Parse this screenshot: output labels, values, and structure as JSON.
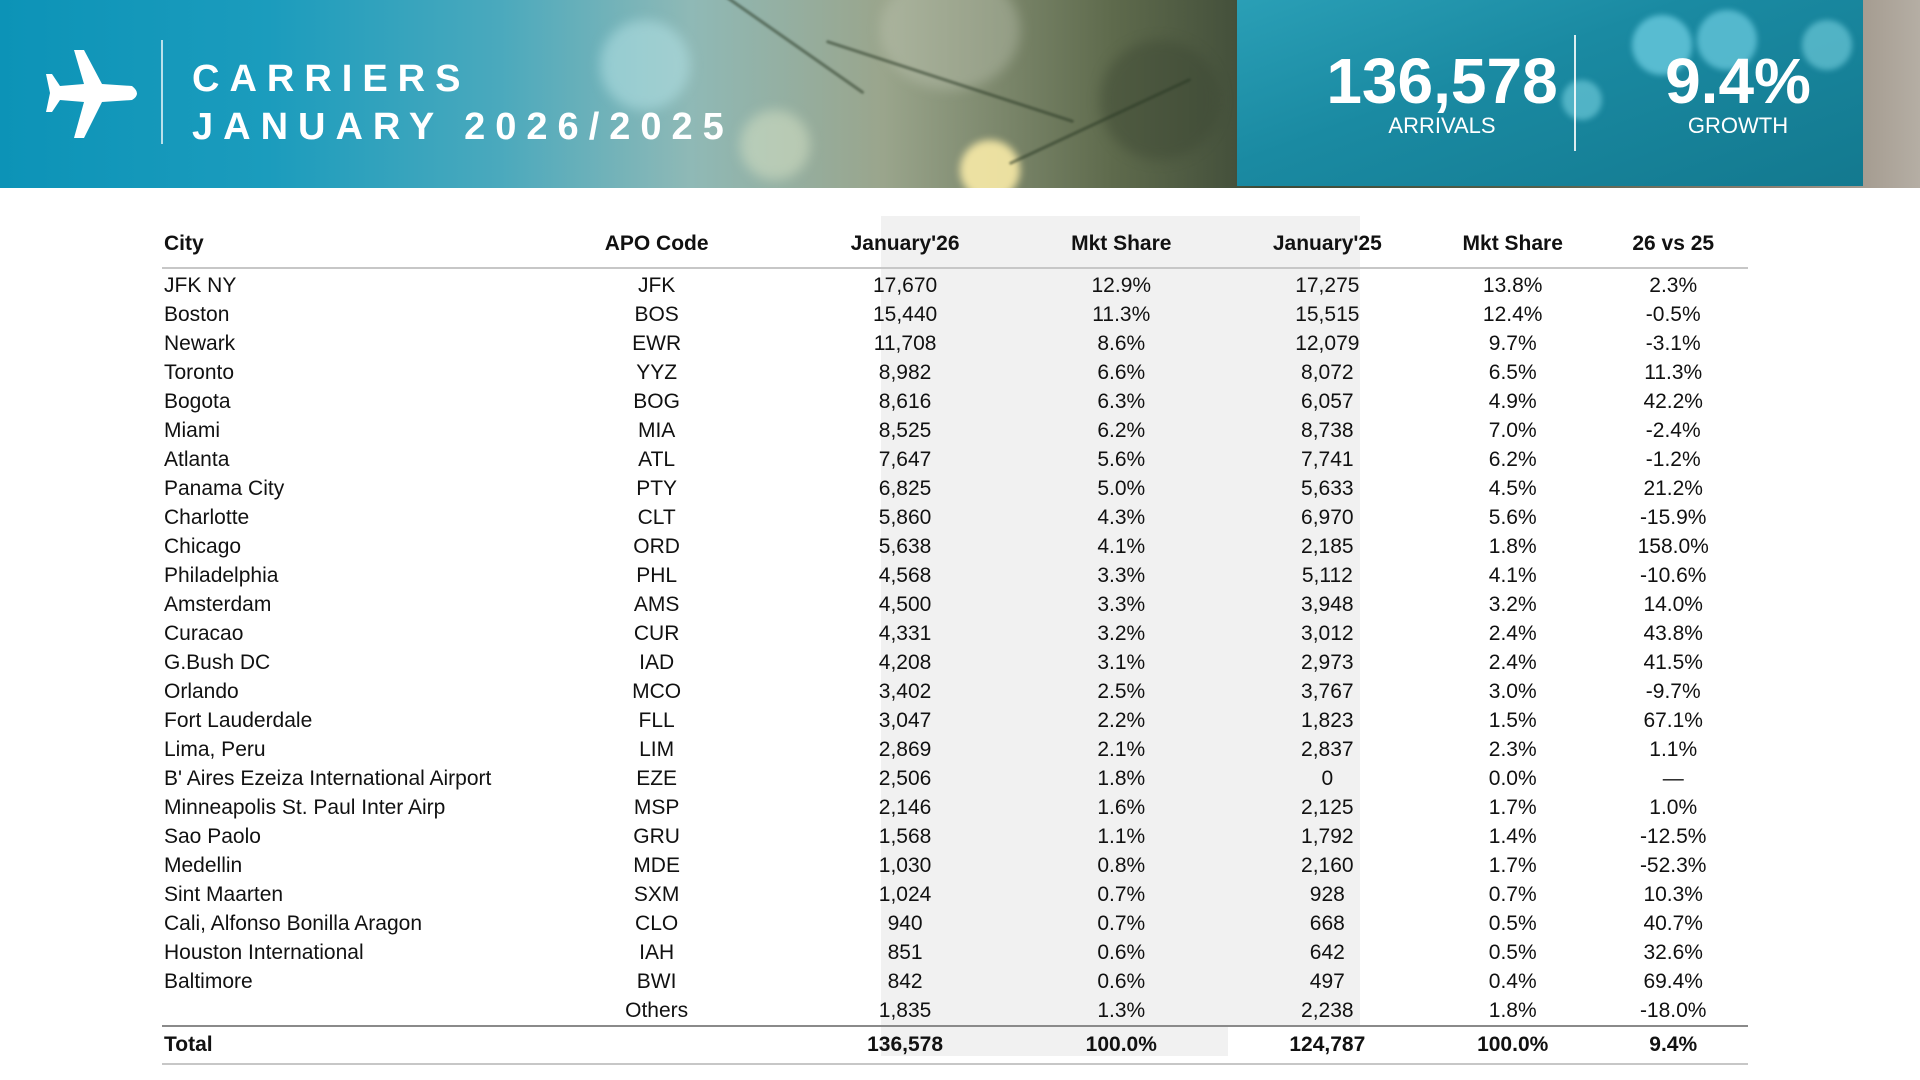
{
  "header": {
    "title_line1": "CARRIERS",
    "title_line2": "JANUARY 2026/2025",
    "icon": "airplane-icon",
    "kpis": {
      "arrivals": {
        "value": "136,578",
        "label": "ARRIVALS"
      },
      "growth": {
        "value": "9.4%",
        "label": "GROWTH"
      }
    }
  },
  "colors": {
    "banner_teal": "#0c93b7",
    "kpi_panel": "#1a8aa2",
    "shaded_column": "#f1f1f1",
    "rule": "#c7c7c7",
    "text": "#111111"
  },
  "table": {
    "columns": [
      "City",
      "APO Code",
      "January'26",
      "Mkt Share",
      "January'25",
      "Mkt Share",
      "26 vs 25"
    ],
    "rows": [
      {
        "city": "JFK NY",
        "code": "JFK",
        "jan26": "17,670",
        "share26": "12.9%",
        "jan25": "17,275",
        "share25": "13.8%",
        "diff": "2.3%"
      },
      {
        "city": "Boston",
        "code": "BOS",
        "jan26": "15,440",
        "share26": "11.3%",
        "jan25": "15,515",
        "share25": "12.4%",
        "diff": "-0.5%"
      },
      {
        "city": "Newark",
        "code": "EWR",
        "jan26": "11,708",
        "share26": "8.6%",
        "jan25": "12,079",
        "share25": "9.7%",
        "diff": "-3.1%"
      },
      {
        "city": "Toronto",
        "code": "YYZ",
        "jan26": "8,982",
        "share26": "6.6%",
        "jan25": "8,072",
        "share25": "6.5%",
        "diff": "11.3%"
      },
      {
        "city": "Bogota",
        "code": "BOG",
        "jan26": "8,616",
        "share26": "6.3%",
        "jan25": "6,057",
        "share25": "4.9%",
        "diff": "42.2%"
      },
      {
        "city": "Miami",
        "code": "MIA",
        "jan26": "8,525",
        "share26": "6.2%",
        "jan25": "8,738",
        "share25": "7.0%",
        "diff": "-2.4%"
      },
      {
        "city": "Atlanta",
        "code": "ATL",
        "jan26": "7,647",
        "share26": "5.6%",
        "jan25": "7,741",
        "share25": "6.2%",
        "diff": "-1.2%"
      },
      {
        "city": "Panama City",
        "code": "PTY",
        "jan26": "6,825",
        "share26": "5.0%",
        "jan25": "5,633",
        "share25": "4.5%",
        "diff": "21.2%"
      },
      {
        "city": "Charlotte",
        "code": "CLT",
        "jan26": "5,860",
        "share26": "4.3%",
        "jan25": "6,970",
        "share25": "5.6%",
        "diff": "-15.9%"
      },
      {
        "city": "Chicago",
        "code": "ORD",
        "jan26": "5,638",
        "share26": "4.1%",
        "jan25": "2,185",
        "share25": "1.8%",
        "diff": "158.0%"
      },
      {
        "city": "Philadelphia",
        "code": "PHL",
        "jan26": "4,568",
        "share26": "3.3%",
        "jan25": "5,112",
        "share25": "4.1%",
        "diff": "-10.6%"
      },
      {
        "city": "Amsterdam",
        "code": "AMS",
        "jan26": "4,500",
        "share26": "3.3%",
        "jan25": "3,948",
        "share25": "3.2%",
        "diff": "14.0%"
      },
      {
        "city": "Curacao",
        "code": "CUR",
        "jan26": "4,331",
        "share26": "3.2%",
        "jan25": "3,012",
        "share25": "2.4%",
        "diff": "43.8%"
      },
      {
        "city": "G.Bush DC",
        "code": "IAD",
        "jan26": "4,208",
        "share26": "3.1%",
        "jan25": "2,973",
        "share25": "2.4%",
        "diff": "41.5%"
      },
      {
        "city": "Orlando",
        "code": "MCO",
        "jan26": "3,402",
        "share26": "2.5%",
        "jan25": "3,767",
        "share25": "3.0%",
        "diff": "-9.7%"
      },
      {
        "city": "Fort Lauderdale",
        "code": "FLL",
        "jan26": "3,047",
        "share26": "2.2%",
        "jan25": "1,823",
        "share25": "1.5%",
        "diff": "67.1%"
      },
      {
        "city": "Lima, Peru",
        "code": "LIM",
        "jan26": "2,869",
        "share26": "2.1%",
        "jan25": "2,837",
        "share25": "2.3%",
        "diff": "1.1%"
      },
      {
        "city": "B' Aires Ezeiza International Airport",
        "code": "EZE",
        "jan26": "2,506",
        "share26": "1.8%",
        "jan25": "0",
        "share25": "0.0%",
        "diff": "—"
      },
      {
        "city": "Minneapolis St. Paul Inter Airp",
        "code": "MSP",
        "jan26": "2,146",
        "share26": "1.6%",
        "jan25": "2,125",
        "share25": "1.7%",
        "diff": "1.0%"
      },
      {
        "city": "Sao Paolo",
        "code": "GRU",
        "jan26": "1,568",
        "share26": "1.1%",
        "jan25": "1,792",
        "share25": "1.4%",
        "diff": "-12.5%"
      },
      {
        "city": "Medellin",
        "code": "MDE",
        "jan26": "1,030",
        "share26": "0.8%",
        "jan25": "2,160",
        "share25": "1.7%",
        "diff": "-52.3%"
      },
      {
        "city": "Sint Maarten",
        "code": "SXM",
        "jan26": "1,024",
        "share26": "0.7%",
        "jan25": "928",
        "share25": "0.7%",
        "diff": "10.3%"
      },
      {
        "city": "Cali, Alfonso Bonilla Aragon",
        "code": "CLO",
        "jan26": "940",
        "share26": "0.7%",
        "jan25": "668",
        "share25": "0.5%",
        "diff": "40.7%"
      },
      {
        "city": "Houston International",
        "code": "IAH",
        "jan26": "851",
        "share26": "0.6%",
        "jan25": "642",
        "share25": "0.5%",
        "diff": "32.6%"
      },
      {
        "city": "Baltimore",
        "code": "BWI",
        "jan26": "842",
        "share26": "0.6%",
        "jan25": "497",
        "share25": "0.4%",
        "diff": "69.4%"
      },
      {
        "city": "",
        "code": "Others",
        "jan26": "1,835",
        "share26": "1.3%",
        "jan25": "2,238",
        "share25": "1.8%",
        "diff": "-18.0%"
      }
    ],
    "total": {
      "city": "Total",
      "code": "",
      "jan26": "136,578",
      "share26": "100.0%",
      "jan25": "124,787",
      "share25": "100.0%",
      "diff": "9.4%"
    }
  }
}
